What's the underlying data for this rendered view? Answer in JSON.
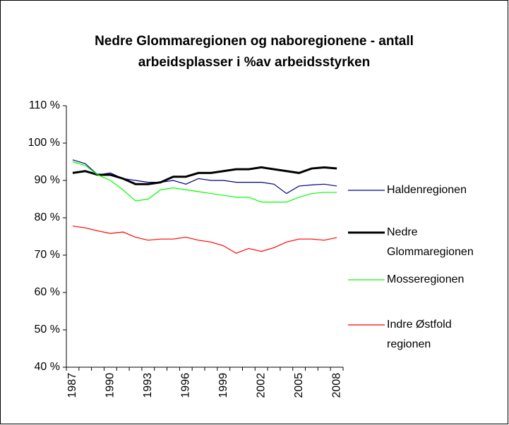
{
  "chart_data": {
    "type": "line",
    "title": "Nedre Glommaregionen og naboregionene - antall arbeidsplasser i %av arbeidsstyrken",
    "categories": [
      "1987",
      null,
      null,
      "1990",
      null,
      null,
      "1993",
      null,
      null,
      "1996",
      null,
      null,
      "1999",
      null,
      null,
      "2002",
      null,
      null,
      "2005",
      null,
      null,
      "2008"
    ],
    "series": [
      {
        "name": "Haldenregionen",
        "color": "#000080",
        "width": 1.2,
        "values": [
          95.5,
          94.5,
          91.5,
          92,
          90.5,
          90,
          89.5,
          89.5,
          90,
          89,
          90.5,
          90,
          90,
          89.5,
          89.5,
          89.5,
          89,
          86.5,
          88.5,
          88.8,
          89,
          88.5
        ]
      },
      {
        "name": "Nedre Glommaregionen",
        "color": "#000000",
        "width": 3,
        "values": [
          92,
          92.5,
          91.5,
          91.5,
          90.5,
          89,
          89,
          89.5,
          91,
          91,
          92,
          92,
          92.5,
          93,
          93,
          93.5,
          93,
          92.5,
          92,
          93.2,
          93.5,
          93.2
        ]
      },
      {
        "name": "Mosseregionen",
        "color": "#00ff00",
        "width": 1.2,
        "values": [
          95,
          94,
          91.5,
          90,
          87.5,
          84.5,
          85,
          87.5,
          88,
          87.5,
          87,
          86.5,
          86,
          85.5,
          85.5,
          84.2,
          84.2,
          84.2,
          85.5,
          86.5,
          86.8,
          86.8
        ]
      },
      {
        "name": "Indre Østfold regionen",
        "color": "#ff0000",
        "width": 1.2,
        "values": [
          77.8,
          77.3,
          76.5,
          75.8,
          76.2,
          74.8,
          74,
          74.3,
          74.3,
          74.8,
          74,
          73.5,
          72.5,
          70.5,
          71.8,
          71,
          72,
          73.5,
          74.3,
          74.3,
          74,
          74.7
        ]
      }
    ],
    "ylim": [
      40,
      110
    ],
    "yticks": [
      {
        "value": 40,
        "label": "40 %"
      },
      {
        "value": 50,
        "label": "50 %"
      },
      {
        "value": 60,
        "label": "60 %"
      },
      {
        "value": 70,
        "label": "70 %"
      },
      {
        "value": 80,
        "label": "80 %"
      },
      {
        "value": 90,
        "label": "90 %"
      },
      {
        "value": 100,
        "label": "100 %"
      },
      {
        "value": 110,
        "label": "110 %"
      }
    ],
    "grid": false,
    "legend": "right"
  }
}
